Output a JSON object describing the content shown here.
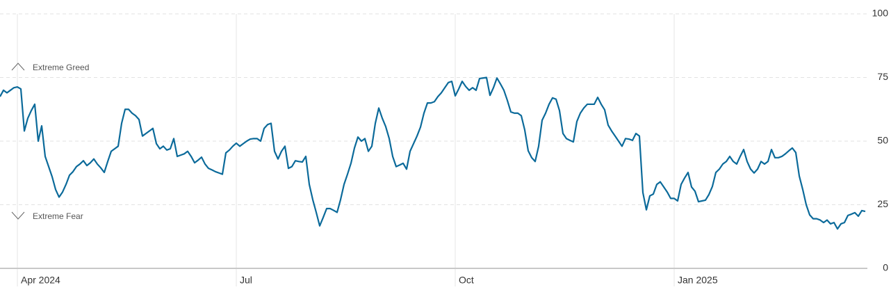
{
  "chart_data": {
    "type": "line",
    "color": "#0b6a9a",
    "grid": true,
    "annotations": [
      "Extreme Greed",
      "Extreme Fear"
    ],
    "ylim": [
      0,
      100
    ],
    "yticks": [
      0,
      25,
      50,
      75,
      100
    ],
    "categories": [
      null,
      null,
      null,
      null,
      null,
      "Apr 2024",
      null,
      null,
      null,
      null,
      null,
      null,
      null,
      null,
      null,
      null,
      null,
      null,
      null,
      null,
      null,
      null,
      null,
      null,
      null,
      null,
      null,
      null,
      null,
      null,
      null,
      null,
      null,
      null,
      null,
      null,
      null,
      null,
      null,
      null,
      null,
      null,
      null,
      null,
      null,
      null,
      null,
      null,
      null,
      null,
      null,
      null,
      null,
      null,
      null,
      null,
      null,
      null,
      null,
      null,
      null,
      null,
      null,
      null,
      null,
      null,
      null,
      null,
      "Jul",
      null,
      null,
      null,
      null,
      null,
      null,
      null,
      null,
      null,
      null,
      null,
      null,
      null,
      null,
      null,
      null,
      null,
      null,
      null,
      null,
      null,
      null,
      null,
      null,
      null,
      null,
      null,
      null,
      null,
      null,
      null,
      null,
      null,
      null,
      null,
      null,
      null,
      null,
      null,
      null,
      null,
      null,
      null,
      null,
      null,
      null,
      null,
      null,
      null,
      null,
      null,
      null,
      null,
      null,
      null,
      null,
      null,
      null,
      null,
      null,
      null,
      null,
      "Oct",
      null,
      null,
      null,
      null,
      null,
      null,
      null,
      null,
      null,
      null,
      null,
      null,
      null,
      null,
      null,
      null,
      null,
      null,
      null,
      null,
      null,
      null,
      null,
      null,
      null,
      null,
      null,
      null,
      null,
      null,
      null,
      null,
      null,
      null,
      null,
      null,
      null,
      null,
      null,
      null,
      null,
      null,
      null,
      null,
      null,
      null,
      null,
      null,
      null,
      null,
      null,
      null,
      null,
      null,
      null,
      null,
      null,
      null,
      null,
      null,
      null,
      null,
      "Jan 2025",
      null,
      null,
      null,
      null,
      null,
      null,
      null,
      null,
      null,
      null,
      null,
      null,
      null,
      null,
      null,
      null,
      null,
      null,
      null,
      null,
      null,
      null,
      null,
      null,
      null,
      null,
      null,
      null,
      null,
      null,
      null,
      null,
      null,
      null,
      null,
      null,
      null,
      null,
      null,
      null,
      null,
      null,
      null,
      null,
      null,
      null,
      null,
      null,
      null,
      null,
      null,
      null,
      null,
      null,
      null
    ],
    "values": [
      67.5,
      70,
      69,
      70,
      71,
      71.3,
      70.5,
      54,
      59,
      62,
      64.5,
      50,
      56,
      44,
      40,
      36,
      31,
      28,
      30,
      33,
      36.6,
      38,
      40,
      41,
      42.3,
      40.4,
      41.5,
      43,
      41,
      39.5,
      37.7,
      42,
      46,
      47,
      48,
      57,
      62.5,
      62.5,
      61,
      60,
      58.5,
      52,
      53,
      54,
      55,
      49,
      47,
      48,
      46.5,
      47,
      51,
      44,
      44.5,
      45,
      46,
      44,
      41.5,
      42.5,
      43.7,
      41,
      39.3,
      38.7,
      38,
      37.5,
      37,
      45.4,
      46.5,
      48,
      49.2,
      48,
      49,
      50,
      50.8,
      51,
      51,
      50,
      55,
      56.5,
      57,
      46,
      43,
      46,
      48,
      39.3,
      40,
      42.3,
      42,
      41.8,
      44,
      33,
      27,
      22,
      16.7,
      20,
      23.5,
      23.5,
      22.8,
      22,
      27,
      33,
      37,
      41.3,
      47.3,
      51.6,
      50,
      51,
      46,
      48,
      57,
      63,
      59,
      55.7,
      51,
      44,
      40,
      40.6,
      41.3,
      39,
      46,
      49,
      52,
      55.5,
      61,
      65,
      65,
      65.5,
      67.5,
      69,
      71,
      73,
      73.5,
      67.8,
      70.5,
      73.5,
      71.5,
      70,
      71,
      70,
      74.6,
      74.8,
      75,
      68,
      71,
      74.8,
      72.5,
      70,
      66,
      61.5,
      61,
      61,
      60,
      54.4,
      46.2,
      43.5,
      42,
      48,
      58.2,
      61,
      64.5,
      67,
      66.5,
      62,
      53,
      51,
      50.3,
      49.7,
      57.7,
      61,
      63,
      64.5,
      64.5,
      64.5,
      67.2,
      64.5,
      62.3,
      56.3,
      54,
      52,
      50,
      48,
      51,
      50.8,
      50.3,
      53,
      52,
      29.8,
      23,
      28.5,
      29.2,
      33,
      34,
      32,
      30,
      27.5,
      27.5,
      26.5,
      33,
      35.5,
      37.7,
      32,
      30.3,
      26.2,
      26.5,
      26.8,
      29,
      32.2,
      37.7,
      39,
      41,
      42,
      44,
      42,
      41,
      44,
      46.7,
      42,
      39,
      37.5,
      39,
      42,
      41,
      42,
      46.7,
      43.5,
      43.5,
      44,
      45,
      46.2,
      47.3,
      45.5,
      36.3,
      31,
      25,
      21,
      19.5,
      19.5,
      19,
      18,
      19,
      17.5,
      18,
      15.5,
      17.5,
      18,
      20.8,
      21.3,
      21.9,
      20.5,
      22.7,
      22.4
    ]
  }
}
